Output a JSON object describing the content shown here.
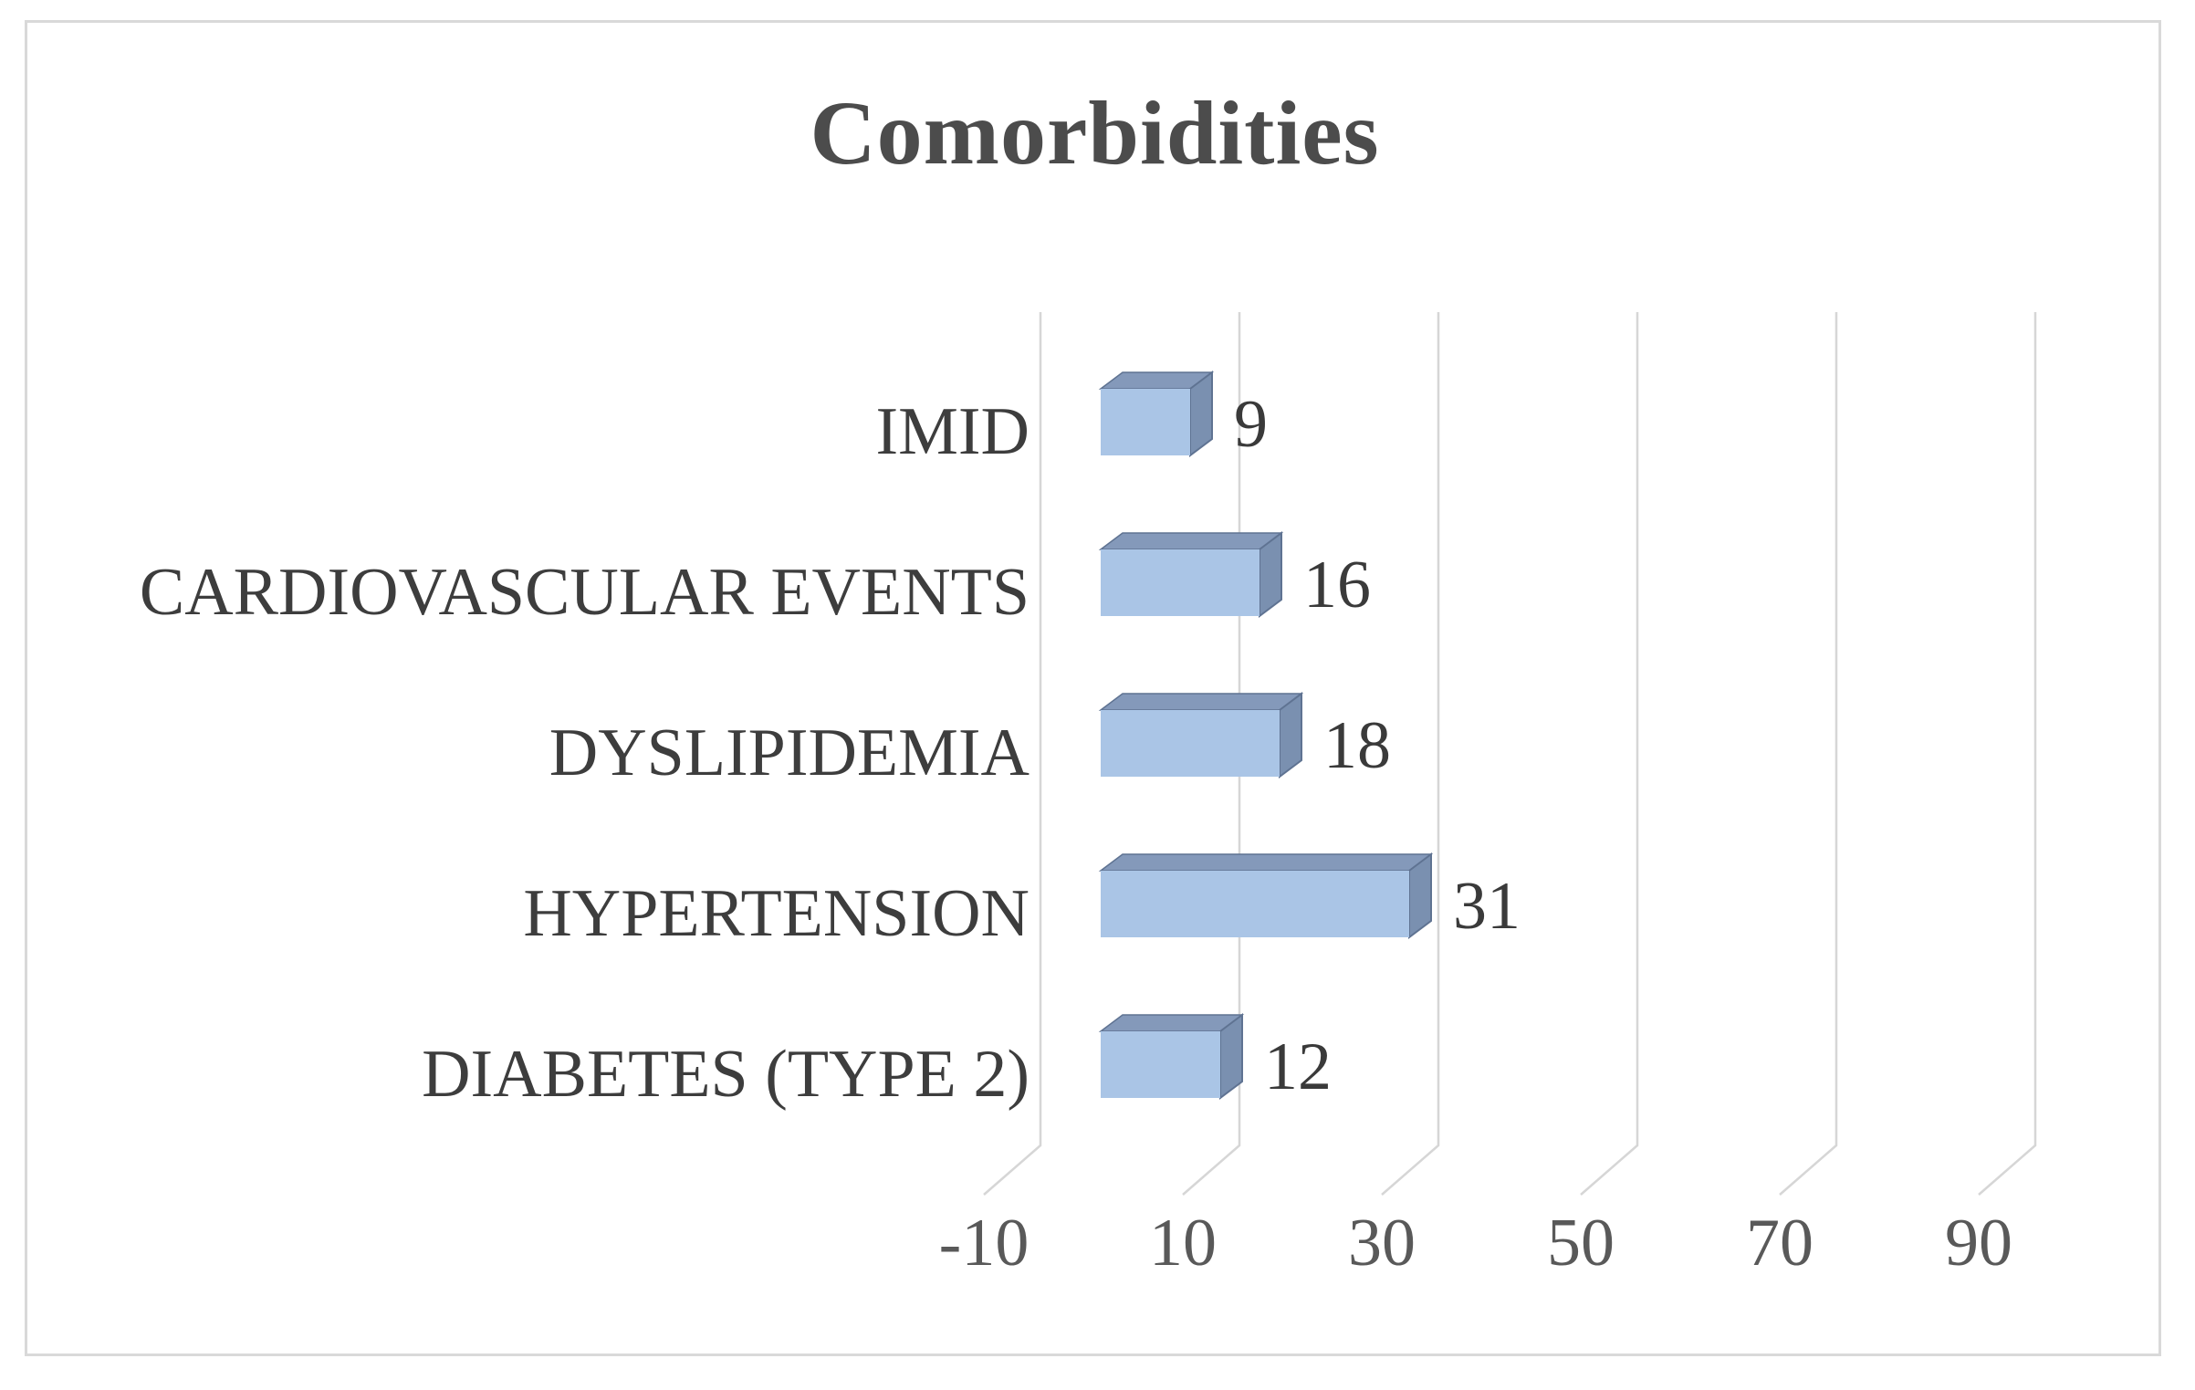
{
  "chart_data": {
    "type": "bar",
    "orientation": "horizontal",
    "style": "3d",
    "title": "Comorbidities",
    "row_order": "top-to-bottom",
    "categories": [
      "IMID",
      "CARDIOVASCULAR EVENTS",
      "DYSLIPIDEMIA",
      "HYPERTENSION",
      "DIABETES (TYPE 2)"
    ],
    "values": [
      9,
      16,
      18,
      31,
      12
    ],
    "data_labels": [
      "9",
      "16",
      "18",
      "31",
      "12"
    ],
    "xlabel": "",
    "ylabel": "",
    "xlim": [
      -10,
      90
    ],
    "x_ticks": [
      -10,
      10,
      30,
      50,
      70,
      90
    ],
    "x_tick_labels": [
      "-10",
      "10",
      "30",
      "50",
      "70",
      "90"
    ],
    "grid": true,
    "legend": false,
    "colors": {
      "bar_front": "#aac5e6",
      "bar_top": "#8499ba",
      "bar_side": "#7a90b0",
      "bar_edge": "#5f7392",
      "gridline": "#d6d6d6",
      "frame_border": "#d9d9d9",
      "title_text": "#4c4c4c",
      "category_text": "#3d3d3d",
      "tick_text": "#595959",
      "value_text": "#3a3a3a",
      "background": "#ffffff"
    }
  }
}
